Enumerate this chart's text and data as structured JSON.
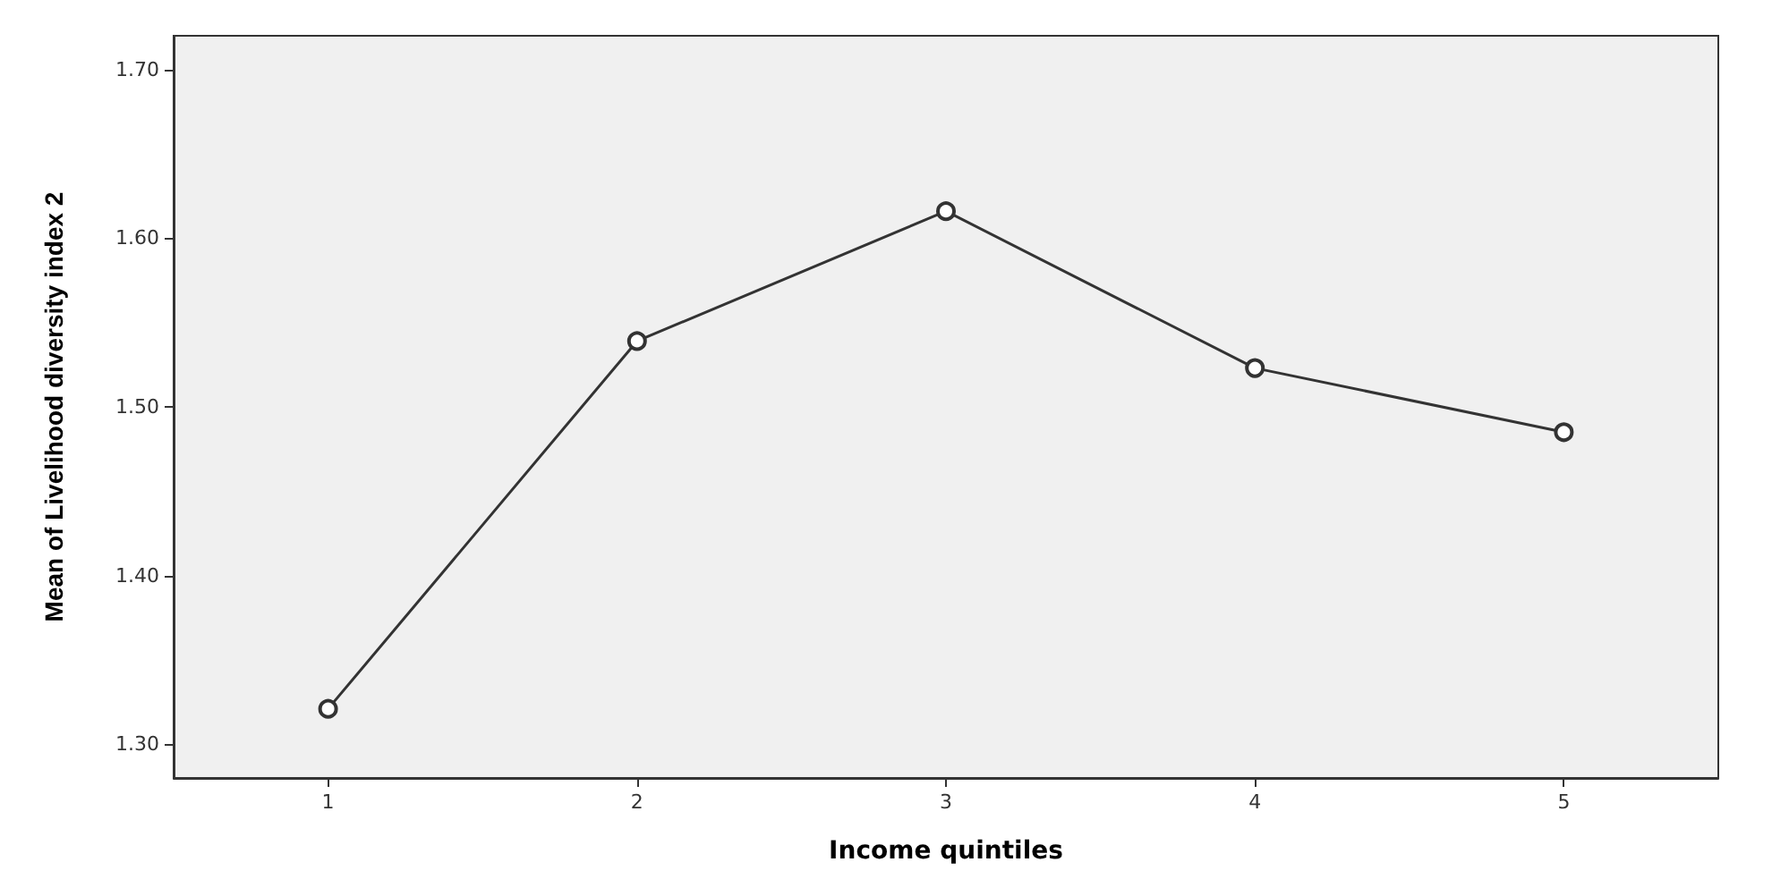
{
  "chart_data": {
    "type": "line",
    "xlabel": "Income quintiles",
    "ylabel": "Mean of Livelihood diversity index 2",
    "categories": [
      "1",
      "2",
      "3",
      "4",
      "5"
    ],
    "series": [
      {
        "color": "#333333",
        "values": [
          1.321,
          1.539,
          1.616,
          1.523,
          1.485
        ]
      }
    ],
    "ylim": [
      1.28,
      1.72
    ],
    "yticks": [
      {
        "value": 1.3,
        "label": "1.30"
      },
      {
        "value": 1.4,
        "label": "1.40"
      },
      {
        "value": 1.5,
        "label": "1.50"
      },
      {
        "value": 1.6,
        "label": "1.60"
      },
      {
        "value": 1.7,
        "label": "1.70"
      }
    ],
    "grid": false,
    "marker": "circle",
    "line_style": "solid"
  }
}
